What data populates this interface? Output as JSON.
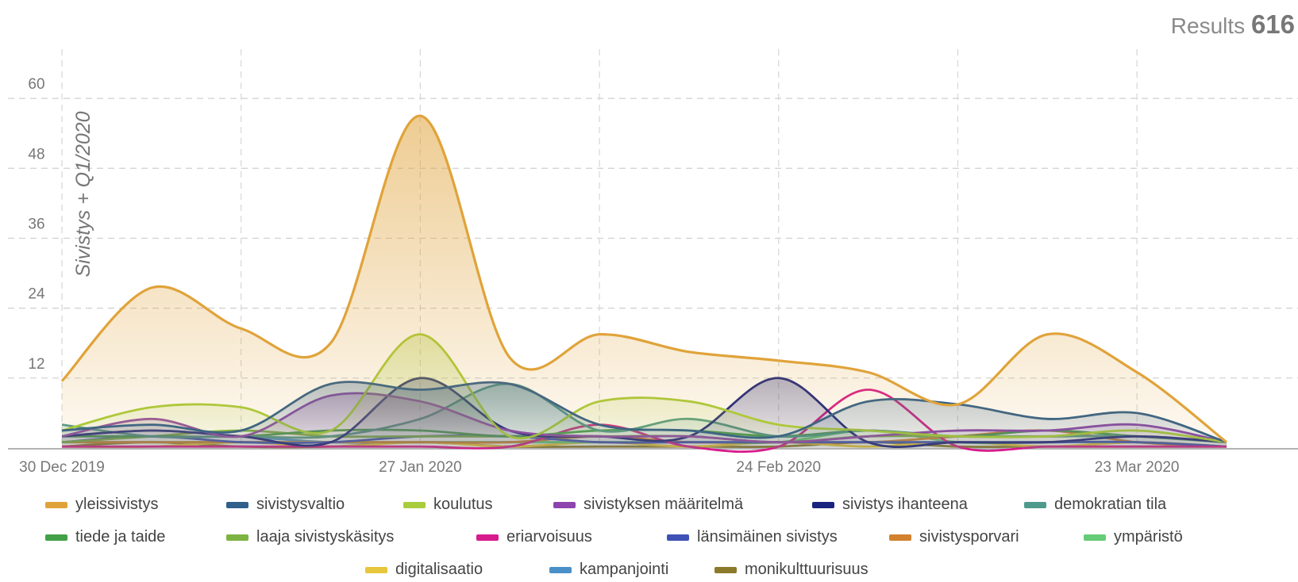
{
  "header": {
    "results_label": "Results",
    "results_count": "616"
  },
  "chart_data": {
    "type": "area",
    "title": "",
    "ylabel": "Sivistys + Q1/2020",
    "xlabel": "",
    "x_start": "2019-12-30",
    "x_end": "2020-03-30",
    "x_ticks": [
      {
        "date": "2019-12-30",
        "label": "30 Dec 2019"
      },
      {
        "date": "2020-01-27",
        "label": "27 Jan 2020"
      },
      {
        "date": "2020-02-24",
        "label": "24 Feb 2020"
      },
      {
        "date": "2020-03-23",
        "label": "23 Mar 2020"
      }
    ],
    "y_ticks": [
      12,
      24,
      36,
      48,
      60
    ],
    "ylim": [
      0,
      66
    ],
    "grid": true,
    "legend_position": "bottom",
    "series": [
      {
        "name": "yleissivistys",
        "color": "#E0A33A",
        "fill": true,
        "points": [
          [
            "2019-12-30",
            11.5
          ],
          [
            "2020-01-06",
            27.5
          ],
          [
            "2020-01-13",
            20.5
          ],
          [
            "2020-01-20",
            18
          ],
          [
            "2020-01-27",
            57
          ],
          [
            "2020-02-03",
            15.5
          ],
          [
            "2020-02-10",
            19.5
          ],
          [
            "2020-02-17",
            16.5
          ],
          [
            "2020-02-24",
            15
          ],
          [
            "2020-03-02",
            13
          ],
          [
            "2020-03-09",
            7.5
          ],
          [
            "2020-03-16",
            19.5
          ],
          [
            "2020-03-23",
            13
          ],
          [
            "2020-03-30",
            1
          ]
        ]
      },
      {
        "name": "sivistysvaltio",
        "color": "#2F5F8A",
        "fill": true,
        "points": [
          [
            "2019-12-30",
            3
          ],
          [
            "2020-01-06",
            4
          ],
          [
            "2020-01-13",
            3
          ],
          [
            "2020-01-20",
            11
          ],
          [
            "2020-01-27",
            10
          ],
          [
            "2020-02-03",
            11
          ],
          [
            "2020-02-10",
            4
          ],
          [
            "2020-02-17",
            3
          ],
          [
            "2020-02-24",
            2
          ],
          [
            "2020-03-02",
            8
          ],
          [
            "2020-03-09",
            7.5
          ],
          [
            "2020-03-16",
            5
          ],
          [
            "2020-03-23",
            6
          ],
          [
            "2020-03-30",
            1
          ]
        ]
      },
      {
        "name": "koulutus",
        "color": "#A8CC3A",
        "fill": true,
        "points": [
          [
            "2019-12-30",
            3
          ],
          [
            "2020-01-06",
            7
          ],
          [
            "2020-01-13",
            7
          ],
          [
            "2020-01-20",
            3
          ],
          [
            "2020-01-27",
            19.5
          ],
          [
            "2020-02-03",
            2
          ],
          [
            "2020-02-10",
            8
          ],
          [
            "2020-02-17",
            8
          ],
          [
            "2020-02-24",
            4
          ],
          [
            "2020-03-02",
            3
          ],
          [
            "2020-03-09",
            2
          ],
          [
            "2020-03-16",
            2
          ],
          [
            "2020-03-23",
            3
          ],
          [
            "2020-03-30",
            1
          ]
        ]
      },
      {
        "name": "sivistyksen määritelmä",
        "color": "#8E44AD",
        "fill": true,
        "points": [
          [
            "2019-12-30",
            2
          ],
          [
            "2020-01-06",
            5
          ],
          [
            "2020-01-13",
            2
          ],
          [
            "2020-01-20",
            9
          ],
          [
            "2020-01-27",
            8
          ],
          [
            "2020-02-03",
            3
          ],
          [
            "2020-02-10",
            2
          ],
          [
            "2020-02-17",
            2
          ],
          [
            "2020-02-24",
            1
          ],
          [
            "2020-03-02",
            2
          ],
          [
            "2020-03-09",
            3
          ],
          [
            "2020-03-16",
            3
          ],
          [
            "2020-03-23",
            4
          ],
          [
            "2020-03-30",
            1
          ]
        ]
      },
      {
        "name": "sivistys ihanteena",
        "color": "#1A237E",
        "fill": true,
        "points": [
          [
            "2019-12-30",
            2
          ],
          [
            "2020-01-06",
            3
          ],
          [
            "2020-01-13",
            2
          ],
          [
            "2020-01-20",
            1
          ],
          [
            "2020-01-27",
            12
          ],
          [
            "2020-02-03",
            3
          ],
          [
            "2020-02-10",
            2
          ],
          [
            "2020-02-17",
            2
          ],
          [
            "2020-02-24",
            12
          ],
          [
            "2020-03-02",
            1
          ],
          [
            "2020-03-09",
            1
          ],
          [
            "2020-03-16",
            1
          ],
          [
            "2020-03-23",
            2
          ],
          [
            "2020-03-30",
            1
          ]
        ]
      },
      {
        "name": "demokratian tila",
        "color": "#4E9A8C",
        "fill": true,
        "points": [
          [
            "2019-12-30",
            4
          ],
          [
            "2020-01-06",
            2
          ],
          [
            "2020-01-13",
            2
          ],
          [
            "2020-01-20",
            2
          ],
          [
            "2020-01-27",
            5
          ],
          [
            "2020-02-03",
            11
          ],
          [
            "2020-02-10",
            3
          ],
          [
            "2020-02-17",
            5
          ],
          [
            "2020-02-24",
            2
          ],
          [
            "2020-03-02",
            3
          ],
          [
            "2020-03-09",
            2
          ],
          [
            "2020-03-16",
            2
          ],
          [
            "2020-03-23",
            2
          ],
          [
            "2020-03-30",
            1
          ]
        ]
      },
      {
        "name": "tiede ja taide",
        "color": "#43A047",
        "fill": false,
        "points": [
          [
            "2019-12-30",
            2
          ],
          [
            "2020-01-06",
            2
          ],
          [
            "2020-01-13",
            2
          ],
          [
            "2020-01-20",
            3
          ],
          [
            "2020-01-27",
            3
          ],
          [
            "2020-02-03",
            2
          ],
          [
            "2020-02-10",
            3
          ],
          [
            "2020-02-17",
            3
          ],
          [
            "2020-02-24",
            2
          ],
          [
            "2020-03-02",
            3
          ],
          [
            "2020-03-09",
            2
          ],
          [
            "2020-03-16",
            3
          ],
          [
            "2020-03-23",
            2
          ],
          [
            "2020-03-30",
            1
          ]
        ]
      },
      {
        "name": "laaja sivistyskäsitys",
        "color": "#7CB342",
        "fill": false,
        "points": [
          [
            "2019-12-30",
            1
          ],
          [
            "2020-01-06",
            2
          ],
          [
            "2020-01-13",
            3
          ],
          [
            "2020-01-20",
            2
          ],
          [
            "2020-01-27",
            2
          ],
          [
            "2020-02-03",
            2
          ],
          [
            "2020-02-10",
            2
          ],
          [
            "2020-02-17",
            2
          ],
          [
            "2020-02-24",
            1
          ],
          [
            "2020-03-02",
            2
          ],
          [
            "2020-03-09",
            2
          ],
          [
            "2020-03-16",
            2
          ],
          [
            "2020-03-23",
            2
          ],
          [
            "2020-03-30",
            1
          ]
        ]
      },
      {
        "name": "eriarvoisuus",
        "color": "#D81B8C",
        "fill": false,
        "points": [
          [
            "2019-12-30",
            0
          ],
          [
            "2020-01-06",
            0
          ],
          [
            "2020-01-13",
            0
          ],
          [
            "2020-01-20",
            0
          ],
          [
            "2020-01-27",
            0
          ],
          [
            "2020-02-03",
            0
          ],
          [
            "2020-02-10",
            4
          ],
          [
            "2020-02-17",
            0
          ],
          [
            "2020-02-24",
            0
          ],
          [
            "2020-03-02",
            10
          ],
          [
            "2020-03-09",
            0
          ],
          [
            "2020-03-16",
            0
          ],
          [
            "2020-03-23",
            0
          ],
          [
            "2020-03-30",
            0
          ]
        ]
      },
      {
        "name": "länsimäinen sivistys",
        "color": "#3F51B5",
        "fill": false,
        "points": [
          [
            "2019-12-30",
            1
          ],
          [
            "2020-01-06",
            2
          ],
          [
            "2020-01-13",
            1
          ],
          [
            "2020-01-20",
            1
          ],
          [
            "2020-01-27",
            2
          ],
          [
            "2020-02-03",
            2
          ],
          [
            "2020-02-10",
            1
          ],
          [
            "2020-02-17",
            1
          ],
          [
            "2020-02-24",
            1
          ],
          [
            "2020-03-02",
            1
          ],
          [
            "2020-03-09",
            1
          ],
          [
            "2020-03-16",
            1
          ],
          [
            "2020-03-23",
            1
          ],
          [
            "2020-03-30",
            0
          ]
        ]
      },
      {
        "name": "sivistysporvari",
        "color": "#D2822E",
        "fill": false,
        "points": [
          [
            "2019-12-30",
            1
          ],
          [
            "2020-01-06",
            1
          ],
          [
            "2020-01-13",
            1
          ],
          [
            "2020-01-20",
            1
          ],
          [
            "2020-01-27",
            1
          ],
          [
            "2020-02-03",
            1
          ],
          [
            "2020-02-10",
            2
          ],
          [
            "2020-02-17",
            1
          ],
          [
            "2020-02-24",
            1
          ],
          [
            "2020-03-02",
            1
          ],
          [
            "2020-03-09",
            2
          ],
          [
            "2020-03-16",
            3
          ],
          [
            "2020-03-23",
            1
          ],
          [
            "2020-03-30",
            0
          ]
        ]
      },
      {
        "name": "ympäristö",
        "color": "#66CC77",
        "fill": false,
        "points": [
          [
            "2019-12-30",
            1
          ],
          [
            "2020-01-06",
            1
          ],
          [
            "2020-01-13",
            1
          ],
          [
            "2020-01-20",
            1
          ],
          [
            "2020-01-27",
            1
          ],
          [
            "2020-02-03",
            1
          ],
          [
            "2020-02-10",
            1
          ],
          [
            "2020-02-17",
            1
          ],
          [
            "2020-02-24",
            1
          ],
          [
            "2020-03-02",
            3
          ],
          [
            "2020-03-09",
            1
          ],
          [
            "2020-03-16",
            1
          ],
          [
            "2020-03-23",
            1
          ],
          [
            "2020-03-30",
            0
          ]
        ]
      },
      {
        "name": "digitalisaatio",
        "color": "#E6C63A",
        "fill": false,
        "points": [
          [
            "2019-12-30",
            0
          ],
          [
            "2020-01-06",
            0
          ],
          [
            "2020-01-13",
            1
          ],
          [
            "2020-01-20",
            0
          ],
          [
            "2020-01-27",
            1
          ],
          [
            "2020-02-03",
            0
          ],
          [
            "2020-02-10",
            1
          ],
          [
            "2020-02-17",
            0
          ],
          [
            "2020-02-24",
            1
          ],
          [
            "2020-03-02",
            0
          ],
          [
            "2020-03-09",
            1
          ],
          [
            "2020-03-16",
            0
          ],
          [
            "2020-03-23",
            1
          ],
          [
            "2020-03-30",
            0
          ]
        ]
      },
      {
        "name": "kampanjointi",
        "color": "#4A90C8",
        "fill": false,
        "points": [
          [
            "2019-12-30",
            2
          ],
          [
            "2020-01-06",
            3
          ],
          [
            "2020-01-13",
            2
          ],
          [
            "2020-01-20",
            1
          ],
          [
            "2020-01-27",
            1
          ],
          [
            "2020-02-03",
            1
          ],
          [
            "2020-02-10",
            1
          ],
          [
            "2020-02-17",
            1
          ],
          [
            "2020-02-24",
            1
          ],
          [
            "2020-03-02",
            1
          ],
          [
            "2020-03-09",
            1
          ],
          [
            "2020-03-16",
            1
          ],
          [
            "2020-03-23",
            1
          ],
          [
            "2020-03-30",
            0
          ]
        ]
      },
      {
        "name": "monikulttuurisuus",
        "color": "#8B7A2B",
        "fill": false,
        "points": [
          [
            "2019-12-30",
            0
          ],
          [
            "2020-01-06",
            1
          ],
          [
            "2020-01-13",
            0
          ],
          [
            "2020-01-20",
            0
          ],
          [
            "2020-01-27",
            1
          ],
          [
            "2020-02-03",
            0
          ],
          [
            "2020-02-10",
            0
          ],
          [
            "2020-02-17",
            0
          ],
          [
            "2020-02-24",
            0
          ],
          [
            "2020-03-02",
            1
          ],
          [
            "2020-03-09",
            0
          ],
          [
            "2020-03-16",
            0
          ],
          [
            "2020-03-23",
            0
          ],
          [
            "2020-03-30",
            0
          ]
        ]
      }
    ]
  }
}
